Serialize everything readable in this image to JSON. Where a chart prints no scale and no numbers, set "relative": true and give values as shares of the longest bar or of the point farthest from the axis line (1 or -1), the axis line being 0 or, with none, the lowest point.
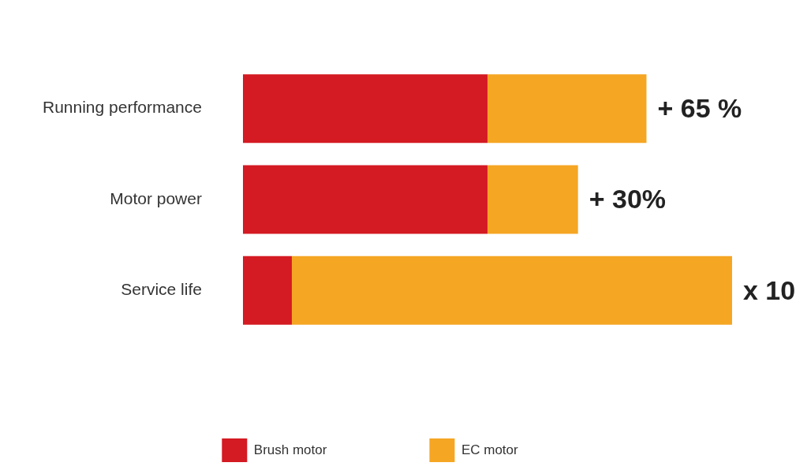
{
  "chart_data": {
    "type": "bar",
    "orientation": "horizontal",
    "stacked": true,
    "relative": true,
    "legend": "bottom",
    "categories": [
      "Running performance",
      "Motor power",
      "Service life"
    ],
    "series": [
      {
        "name": "Brush motor",
        "color": "#d41a22",
        "values": [
          0.5,
          0.5,
          0.1
        ]
      },
      {
        "name": "EC motor",
        "color": "#f5a623",
        "values": [
          0.325,
          0.185,
          0.9
        ]
      }
    ],
    "annotations": [
      {
        "text": "+ 65 %",
        "x": 0.825,
        "y": "Running performance"
      },
      {
        "text": "+ 30%",
        "x": 0.685,
        "y": "Motor power"
      },
      {
        "text": "x 10",
        "x": 1,
        "y": "Service life"
      }
    ]
  }
}
